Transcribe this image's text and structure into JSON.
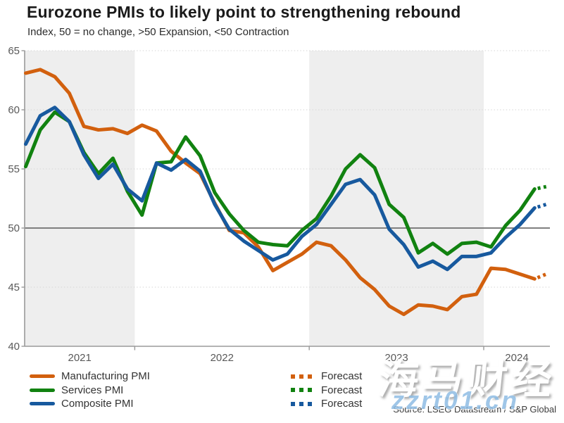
{
  "header": {
    "title": "Eurozone PMIs to likely point to strengthening rebound",
    "subtitle": "Index, 50 = no change, >50 Expansion, <50 Contraction"
  },
  "chart_data": {
    "type": "line",
    "frequency": "monthly",
    "start_month": "2021-05",
    "x_tick_labels": [
      "2021",
      "2022",
      "2023",
      "2024"
    ],
    "ylim": [
      40,
      65
    ],
    "yticks": [
      40,
      45,
      50,
      55,
      60,
      65
    ],
    "reference_line": 50,
    "shaded_year_bands": [
      "2021",
      "2023"
    ],
    "grid": "dotted horizontal lines",
    "legend_position": "bottom",
    "series": [
      {
        "name": "Manufacturing PMI",
        "color": "#d2600e",
        "values": [
          63.1,
          63.4,
          62.8,
          61.4,
          58.6,
          58.3,
          58.4,
          58.0,
          58.7,
          58.2,
          56.5,
          55.5,
          54.6,
          52.1,
          49.8,
          49.6,
          48.4,
          46.4,
          47.1,
          47.8,
          48.8,
          48.5,
          47.3,
          45.8,
          44.8,
          43.4,
          42.7,
          43.5,
          43.4,
          43.1,
          44.2,
          44.4,
          46.6,
          46.5,
          46.1,
          45.7
        ],
        "forecast": 46.1
      },
      {
        "name": "Services PMI",
        "color": "#118210",
        "values": [
          55.2,
          58.3,
          59.8,
          59.0,
          56.4,
          54.6,
          55.9,
          53.1,
          51.1,
          55.5,
          55.6,
          57.7,
          56.1,
          53.0,
          51.2,
          49.8,
          48.8,
          48.6,
          48.5,
          49.8,
          50.8,
          52.7,
          55.0,
          56.2,
          55.1,
          52.0,
          50.9,
          47.9,
          48.7,
          47.8,
          48.7,
          48.8,
          48.4,
          50.2,
          51.5,
          53.3
        ],
        "forecast": 53.5
      },
      {
        "name": "Composite PMI",
        "color": "#17599e",
        "values": [
          57.1,
          59.5,
          60.2,
          59.0,
          56.2,
          54.2,
          55.4,
          53.3,
          52.3,
          55.5,
          54.9,
          55.8,
          54.8,
          52.0,
          49.9,
          48.9,
          48.1,
          47.3,
          47.8,
          49.3,
          50.3,
          52.0,
          53.7,
          54.1,
          52.8,
          49.9,
          48.6,
          46.7,
          47.2,
          46.5,
          47.6,
          47.6,
          47.9,
          49.2,
          50.3,
          51.7
        ],
        "forecast": 52.0
      }
    ]
  },
  "legend": {
    "items": [
      {
        "label": "Manufacturing PMI"
      },
      {
        "label": "Services PMI"
      },
      {
        "label": "Composite PMI"
      }
    ],
    "forecast_label": "Forecast"
  },
  "source": {
    "text": "Source: LSEG Datastream / S&P Global"
  },
  "watermark": {
    "cjk": "海马财经",
    "latin": "zzrt01.cn"
  },
  "colors": {
    "band": "#eeeeee",
    "grid": "#d6d6d6",
    "reference": "#7f7f7f",
    "axis": "#9a9a9a",
    "tick_text": "#595959"
  }
}
